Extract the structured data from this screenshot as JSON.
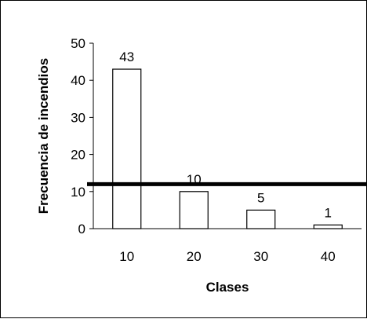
{
  "chart_data": {
    "type": "bar",
    "categories": [
      "10",
      "20",
      "30",
      "40"
    ],
    "values": [
      43,
      10,
      5,
      1
    ],
    "data_labels": [
      "43",
      "10",
      "5",
      "1"
    ],
    "title": "",
    "xlabel": "Clases",
    "ylabel": "Frecuencia de incendios",
    "ylim": [
      0,
      50
    ],
    "yticks": [
      0,
      10,
      20,
      30,
      40,
      50
    ],
    "grid": false,
    "legend": "none",
    "reference_line": {
      "y": 12,
      "color": "#000000"
    },
    "bar_fill": "#ffffff",
    "bar_stroke": "#000000"
  }
}
